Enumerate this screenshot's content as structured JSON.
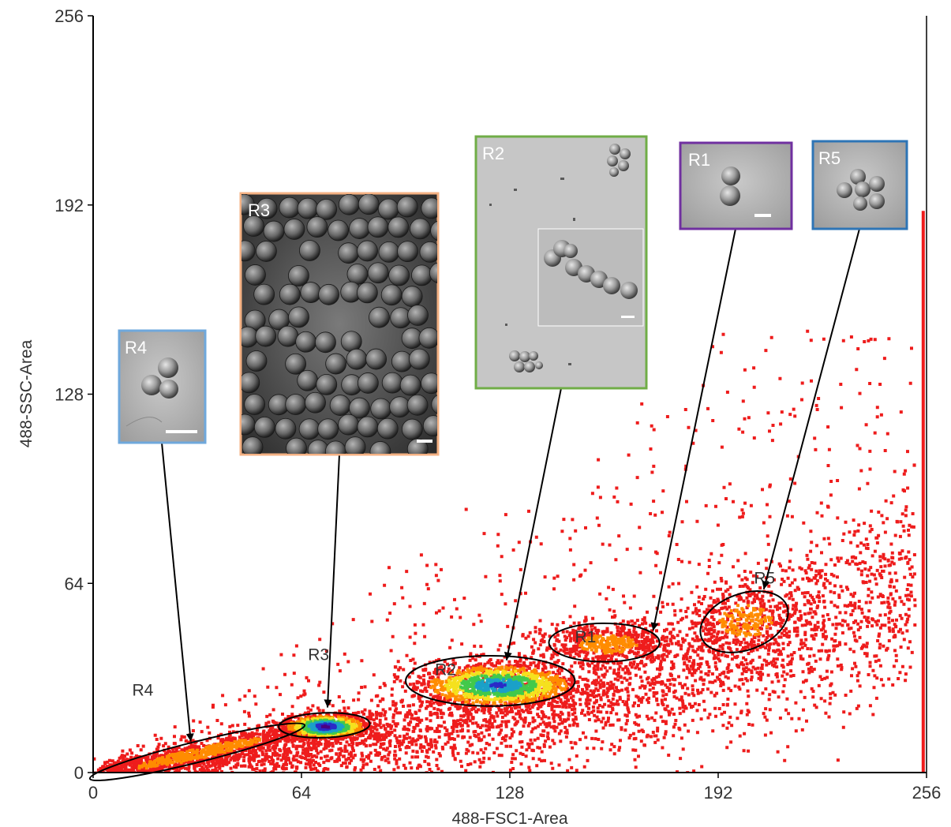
{
  "chart_data": {
    "type": "scatter",
    "xlabel": "488-FSC1-Area",
    "ylabel": "488-SSC-Area",
    "xlim": [
      0,
      256
    ],
    "ylim": [
      0,
      256
    ],
    "x_ticks": [
      0,
      64,
      128,
      192,
      256
    ],
    "y_ticks": [
      0,
      64,
      128,
      192,
      256
    ],
    "density_colormap": [
      "#ee1c1c",
      "#ff8c00",
      "#f5e11e",
      "#42c94a",
      "#1aa0c8",
      "#2a2ac8",
      "#4b0082"
    ],
    "gates": [
      {
        "name": "R4",
        "label_at": [
          12,
          26
        ],
        "ellipse": {
          "cx": 32,
          "cy": 7,
          "rx": 34,
          "ry": 3.5,
          "rotation_deg": -14
        },
        "image_label": "R4",
        "border_color": "#6fa8dc",
        "points_to": [
          30,
          10.5
        ]
      },
      {
        "name": "R3",
        "label_at": [
          66,
          38
        ],
        "ellipse": {
          "cx": 71,
          "cy": 16,
          "rx": 14,
          "ry": 4.2,
          "rotation_deg": -2
        },
        "image_label": "R3",
        "border_color": "#f4b183",
        "points_to": [
          72,
          22
        ]
      },
      {
        "name": "R2",
        "label_at": [
          105,
          33
        ],
        "ellipse": {
          "cx": 122,
          "cy": 31,
          "rx": 26,
          "ry": 8.5,
          "rotation_deg": 0
        },
        "image_label": "R2",
        "border_color": "#70ad47",
        "points_to": [
          127,
          38
        ]
      },
      {
        "name": "R1",
        "label_at": [
          148,
          44
        ],
        "ellipse": {
          "cx": 157,
          "cy": 44,
          "rx": 17,
          "ry": 6.5,
          "rotation_deg": 0
        },
        "image_label": "R1",
        "border_color": "#7030a0",
        "points_to": [
          172,
          48
        ]
      },
      {
        "name": "R5",
        "label_at": [
          203,
          64
        ],
        "ellipse": {
          "cx": 200,
          "cy": 51,
          "rx": 14,
          "ry": 9.5,
          "rotation_deg": -20
        },
        "image_label": "R5",
        "border_color": "#2e75b6",
        "points_to": [
          206,
          62
        ]
      }
    ]
  }
}
